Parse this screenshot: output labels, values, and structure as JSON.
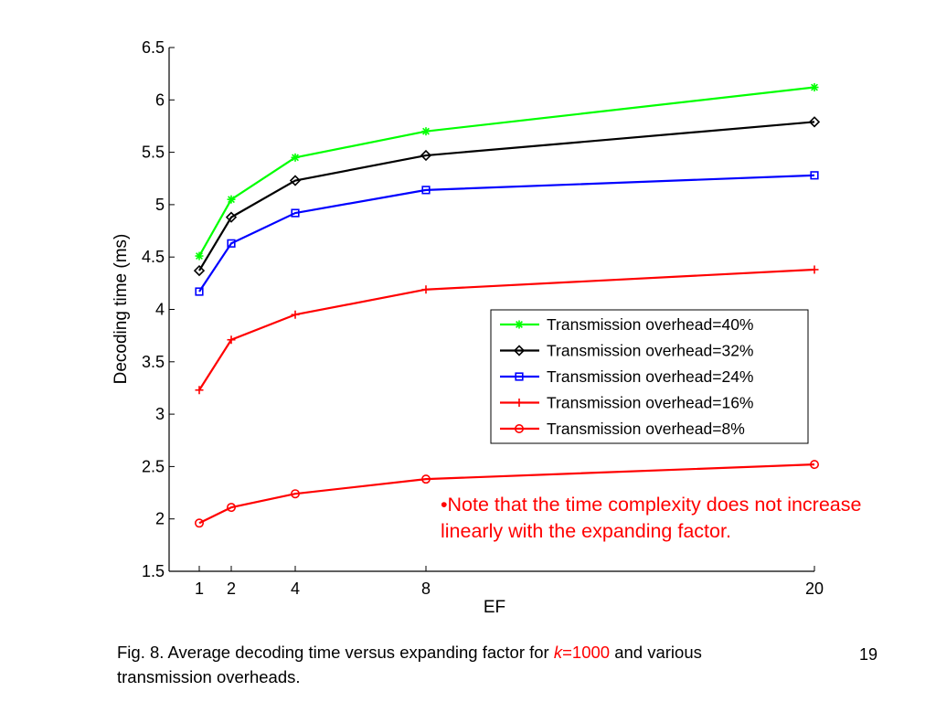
{
  "chart_data": {
    "type": "line",
    "xlabel": "EF",
    "ylabel": "Decoding time (ms)",
    "x_ticks": [
      "1",
      "2",
      "4",
      "8",
      "20"
    ],
    "y_ticks": [
      "1.5",
      "2",
      "2.5",
      "3",
      "3.5",
      "4",
      "4.5",
      "5",
      "5.5",
      "6",
      "6.5"
    ],
    "x": [
      1,
      2,
      4,
      8,
      20
    ],
    "ylim": [
      1.5,
      6.5
    ],
    "grid": false,
    "legend_position": "center-right",
    "series": [
      {
        "name": "Transmission overhead=40%",
        "color": "#00ff00",
        "marker": "star",
        "values": [
          4.51,
          5.05,
          5.45,
          5.7,
          6.12
        ]
      },
      {
        "name": "Transmission overhead=32%",
        "color": "#000000",
        "marker": "diamond",
        "values": [
          4.37,
          4.88,
          5.23,
          5.47,
          5.79
        ]
      },
      {
        "name": "Transmission overhead=24%",
        "color": "#0000ff",
        "marker": "square",
        "values": [
          4.17,
          4.63,
          4.92,
          5.14,
          5.28
        ]
      },
      {
        "name": "Transmission overhead=16%",
        "color": "#ff0000",
        "marker": "plus",
        "values": [
          3.23,
          3.71,
          3.95,
          4.19,
          4.38
        ]
      },
      {
        "name": "Transmission overhead=8%",
        "color": "#ff0000",
        "marker": "circle",
        "values": [
          1.96,
          2.11,
          2.24,
          2.38,
          2.52
        ]
      }
    ]
  },
  "note": "•Note that the time complexity does not increase linearly with the expanding factor.",
  "caption": {
    "prefix": "Fig. 8. Average decoding time versus expanding factor for ",
    "k_var": "k",
    "k_value": "=1000",
    "suffix": " and various transmission overheads."
  },
  "slide_number": "19"
}
